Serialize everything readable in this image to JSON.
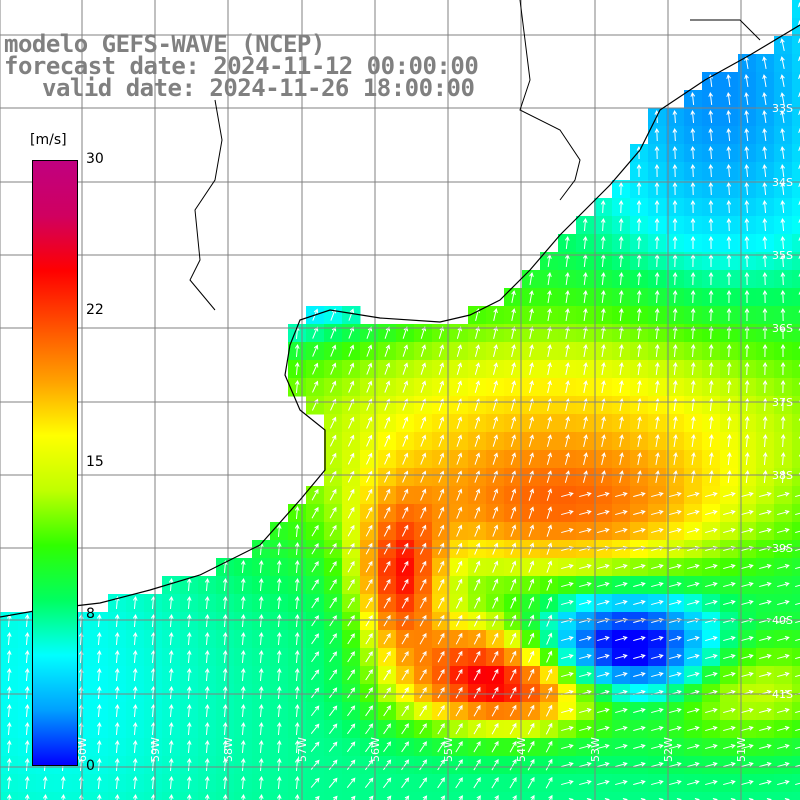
{
  "header": {
    "title": "modelo GEFS-WAVE (NCEP)",
    "forecast_label": "forecast date: 2024-11-12 00:00:00",
    "valid_label": "valid date: 2024-11-26 18:00:00"
  },
  "colorbar": {
    "unit": "[m/s]",
    "ticks": [
      "30",
      "22",
      "15",
      "8",
      "0"
    ],
    "min": 0,
    "max": 30,
    "colors": [
      "#0000ff",
      "#00a0ff",
      "#00ffff",
      "#00ff60",
      "#30ff00",
      "#c0ff00",
      "#ffff00",
      "#ffa000",
      "#ff5000",
      "#ff0000",
      "#d00060",
      "#c00080"
    ]
  },
  "map": {
    "lat_labels": [
      "33S",
      "34S",
      "35S",
      "36S",
      "37S",
      "38S",
      "39S",
      "40S",
      "41S"
    ],
    "lon_labels": [
      "60W",
      "59W",
      "58W",
      "57W",
      "56W",
      "55W",
      "54W",
      "53W",
      "52W",
      "51W"
    ],
    "coast_color": "#000000",
    "grid_color": "#808080",
    "arrow_color": "#ffffff"
  }
}
